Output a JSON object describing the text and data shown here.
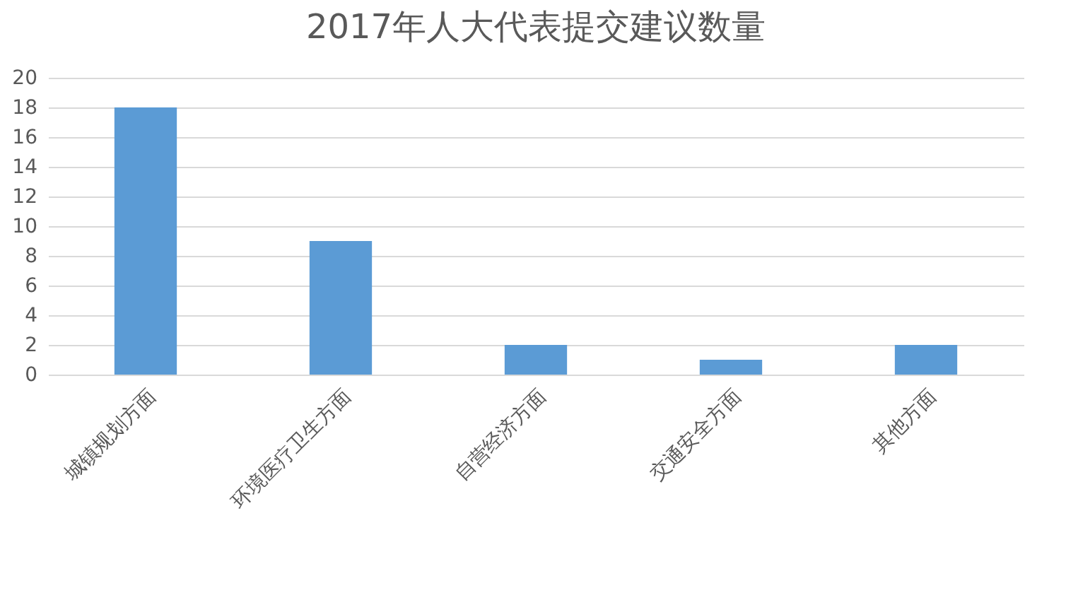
{
  "chart_data": {
    "type": "bar",
    "title": "2017年人大代表提交建议数量",
    "categories": [
      "城镇规划方面",
      "环境医疗卫生方面",
      "自营经济方面",
      "交通安全方面",
      "其他方面"
    ],
    "values": [
      18,
      9,
      2,
      1,
      2
    ],
    "color": "#5b9bd5",
    "ylim": [
      0,
      20
    ],
    "yticks": [
      0,
      2,
      4,
      6,
      8,
      10,
      12,
      14,
      16,
      18,
      20
    ],
    "grid": "y"
  }
}
